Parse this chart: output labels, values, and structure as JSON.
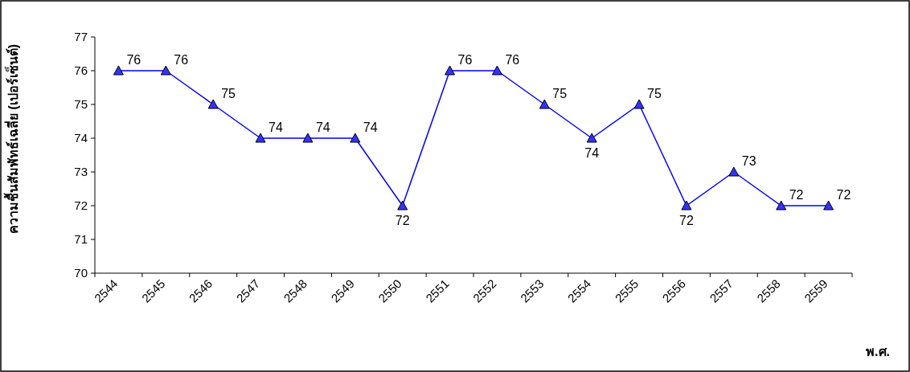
{
  "chart_data": {
    "type": "line",
    "xlabel": "พ.ศ.",
    "ylabel": "ความชื้นสัมพัทธ์เฉลี่ย (เปอร์เซ็นต์)",
    "categories": [
      "2544",
      "2545",
      "2546",
      "2547",
      "2548",
      "2549",
      "2550",
      "2551",
      "2552",
      "2553",
      "2554",
      "2555",
      "2556",
      "2557",
      "2558",
      "2559"
    ],
    "series": [
      {
        "color": "#0000ff",
        "values": [
          76,
          76,
          75,
          74,
          74,
          74,
          72,
          76,
          76,
          75,
          74,
          75,
          72,
          73,
          72,
          72
        ]
      }
    ],
    "ylim": [
      70,
      77
    ],
    "yticks": [
      70,
      71,
      72,
      73,
      74,
      75,
      76,
      77
    ],
    "marker": "triangle",
    "data_labels": true,
    "grid": false
  }
}
